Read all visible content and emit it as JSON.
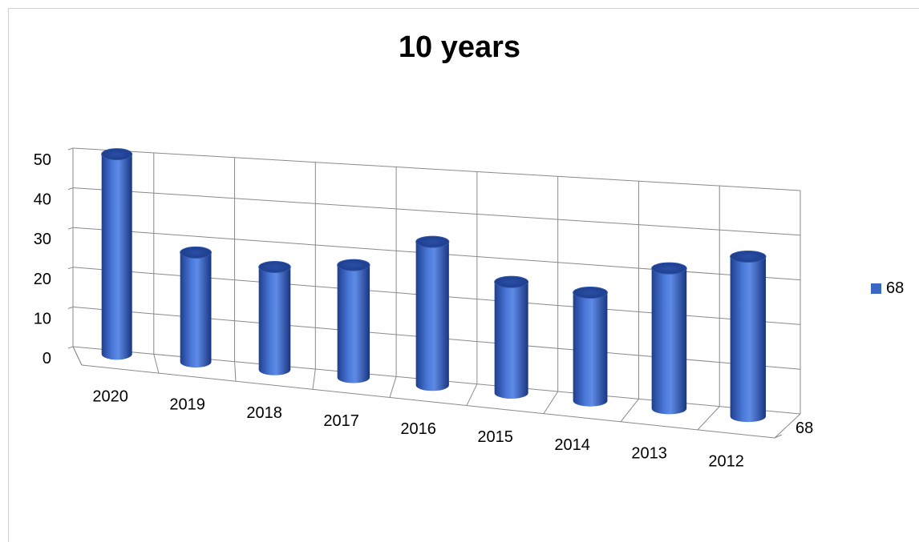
{
  "chart_data": {
    "type": "bar",
    "variant": "3d-cylinder",
    "title": "10 years",
    "categories": [
      "2020",
      "2019",
      "2018",
      "2017",
      "2016",
      "2015",
      "2014",
      "2013",
      "2012"
    ],
    "series": [
      {
        "name": "68",
        "values": [
          50,
          27,
          25,
          27,
          34,
          26,
          25,
          32,
          36
        ],
        "color": "#3a66c4"
      }
    ],
    "depth_axis_label": "68",
    "ylim": [
      0,
      50
    ],
    "yticks": [
      "0",
      "10",
      "20",
      "30",
      "40",
      "50"
    ],
    "grid": true,
    "legend": "right"
  }
}
